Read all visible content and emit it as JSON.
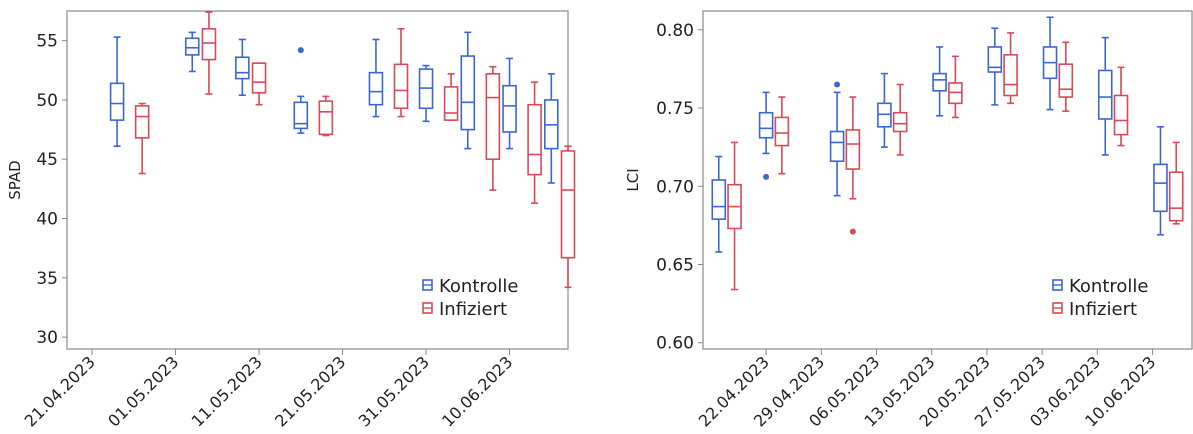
{
  "colors": {
    "kontrolle": "#3b66d6",
    "infiziert": "#d84a57",
    "axis": "#888888"
  },
  "chart_data": [
    {
      "type": "box",
      "ylabel": "SPAD",
      "ylim": [
        29,
        57.5
      ],
      "yticks": [
        30,
        35,
        40,
        45,
        50,
        55
      ],
      "xlim": [
        "2023-04-18",
        "2023-06-17"
      ],
      "xticks": [
        "21.04.2023",
        "01.05.2023",
        "11.05.2023",
        "21.05.2023",
        "31.05.2023",
        "10.06.2023"
      ],
      "legend": {
        "position": "bottom-right",
        "entries": [
          "Kontrolle",
          "Infiziert"
        ]
      },
      "series": [
        {
          "name": "Kontrolle",
          "boxes": [
            {
              "x": "2023-04-24",
              "min": 46.1,
              "q1": 48.3,
              "median": 49.7,
              "q3": 51.4,
              "max": 55.3,
              "outliers": []
            },
            {
              "x": "2023-05-03",
              "min": 52.4,
              "q1": 53.8,
              "median": 54.4,
              "q3": 55.2,
              "max": 55.7,
              "outliers": []
            },
            {
              "x": "2023-05-09",
              "min": 50.4,
              "q1": 51.8,
              "median": 52.3,
              "q3": 53.6,
              "max": 55.1,
              "outliers": []
            },
            {
              "x": "2023-05-16",
              "min": 47.2,
              "q1": 47.6,
              "median": 48.0,
              "q3": 49.8,
              "max": 50.3,
              "outliers": [
                54.2
              ]
            },
            {
              "x": "2023-05-25",
              "min": 48.6,
              "q1": 49.6,
              "median": 50.7,
              "q3": 52.3,
              "max": 55.1,
              "outliers": []
            },
            {
              "x": "2023-05-31",
              "min": 48.2,
              "q1": 49.3,
              "median": 51.0,
              "q3": 52.6,
              "max": 52.9,
              "outliers": []
            },
            {
              "x": "2023-06-05",
              "min": 45.9,
              "q1": 47.5,
              "median": 49.8,
              "q3": 53.7,
              "max": 55.7,
              "outliers": []
            },
            {
              "x": "2023-06-10",
              "min": 45.9,
              "q1": 47.3,
              "median": 49.5,
              "q3": 51.2,
              "max": 53.5,
              "outliers": []
            },
            {
              "x": "2023-06-15",
              "min": 43.0,
              "q1": 45.9,
              "median": 47.9,
              "q3": 50.0,
              "max": 52.2,
              "outliers": []
            }
          ]
        },
        {
          "name": "Infiziert",
          "boxes": [
            {
              "x": "2023-04-27",
              "min": 43.8,
              "q1": 46.8,
              "median": 48.6,
              "q3": 49.5,
              "max": 49.7,
              "outliers": []
            },
            {
              "x": "2023-05-05",
              "min": 50.5,
              "q1": 53.4,
              "median": 54.8,
              "q3": 56.0,
              "max": 57.4,
              "outliers": []
            },
            {
              "x": "2023-05-11",
              "min": 49.6,
              "q1": 50.6,
              "median": 51.5,
              "q3": 53.1,
              "max": 53.1,
              "outliers": []
            },
            {
              "x": "2023-05-19",
              "min": 47.0,
              "q1": 47.1,
              "median": 49.0,
              "q3": 49.9,
              "max": 50.3,
              "outliers": []
            },
            {
              "x": "2023-05-28",
              "min": 48.6,
              "q1": 49.3,
              "median": 50.8,
              "q3": 53.0,
              "max": 56.0,
              "outliers": []
            },
            {
              "x": "2023-06-03",
              "min": 48.3,
              "q1": 48.3,
              "median": 48.9,
              "q3": 51.1,
              "max": 52.2,
              "outliers": []
            },
            {
              "x": "2023-06-08",
              "min": 42.4,
              "q1": 45.0,
              "median": 50.2,
              "q3": 52.2,
              "max": 52.8,
              "outliers": []
            },
            {
              "x": "2023-06-13",
              "min": 41.3,
              "q1": 43.7,
              "median": 45.4,
              "q3": 49.6,
              "max": 51.5,
              "outliers": []
            },
            {
              "x": "2023-06-17",
              "min": 34.2,
              "q1": 36.7,
              "median": 42.4,
              "q3": 45.7,
              "max": 46.1,
              "outliers": []
            }
          ]
        }
      ]
    },
    {
      "type": "box",
      "ylabel": "LCI",
      "ylim": [
        0.596,
        0.812
      ],
      "yticks": [
        "0.60",
        "0.65",
        "0.70",
        "0.75",
        "0.80"
      ],
      "xlim": [
        "2023-04-14",
        "2023-06-15"
      ],
      "xticks": [
        "22.04.2023",
        "29.04.2023",
        "06.05.2023",
        "13.05.2023",
        "20.05.2023",
        "27.05.2023",
        "03.06.2023",
        "10.06.2023"
      ],
      "legend": {
        "position": "bottom-right",
        "entries": [
          "Kontrolle",
          "Infiziert"
        ]
      },
      "series": [
        {
          "name": "Kontrolle",
          "boxes": [
            {
              "x": "2023-04-16",
              "min": 0.658,
              "q1": 0.679,
              "median": 0.687,
              "q3": 0.704,
              "max": 0.719,
              "outliers": []
            },
            {
              "x": "2023-04-22",
              "min": 0.721,
              "q1": 0.731,
              "median": 0.737,
              "q3": 0.747,
              "max": 0.76,
              "outliers": [
                0.706
              ]
            },
            {
              "x": "2023-05-01",
              "min": 0.694,
              "q1": 0.716,
              "median": 0.728,
              "q3": 0.735,
              "max": 0.76,
              "outliers": [
                0.765
              ]
            },
            {
              "x": "2023-05-07",
              "min": 0.725,
              "q1": 0.738,
              "median": 0.746,
              "q3": 0.753,
              "max": 0.772,
              "outliers": []
            },
            {
              "x": "2023-05-14",
              "min": 0.745,
              "q1": 0.761,
              "median": 0.768,
              "q3": 0.772,
              "max": 0.789,
              "outliers": []
            },
            {
              "x": "2023-05-21",
              "min": 0.752,
              "q1": 0.773,
              "median": 0.776,
              "q3": 0.789,
              "max": 0.801,
              "outliers": []
            },
            {
              "x": "2023-05-28",
              "min": 0.749,
              "q1": 0.769,
              "median": 0.779,
              "q3": 0.789,
              "max": 0.808,
              "outliers": []
            },
            {
              "x": "2023-06-04",
              "min": 0.72,
              "q1": 0.743,
              "median": 0.757,
              "q3": 0.774,
              "max": 0.795,
              "outliers": []
            },
            {
              "x": "2023-06-11",
              "min": 0.669,
              "q1": 0.684,
              "median": 0.702,
              "q3": 0.714,
              "max": 0.738,
              "outliers": []
            }
          ]
        },
        {
          "name": "Infiziert",
          "boxes": [
            {
              "x": "2023-04-18",
              "min": 0.634,
              "q1": 0.673,
              "median": 0.687,
              "q3": 0.701,
              "max": 0.728,
              "outliers": []
            },
            {
              "x": "2023-04-24",
              "min": 0.708,
              "q1": 0.726,
              "median": 0.734,
              "q3": 0.744,
              "max": 0.757,
              "outliers": []
            },
            {
              "x": "2023-05-03",
              "min": 0.692,
              "q1": 0.711,
              "median": 0.727,
              "q3": 0.736,
              "max": 0.757,
              "outliers": [
                0.671
              ]
            },
            {
              "x": "2023-05-09",
              "min": 0.72,
              "q1": 0.735,
              "median": 0.74,
              "q3": 0.747,
              "max": 0.765,
              "outliers": []
            },
            {
              "x": "2023-05-16",
              "min": 0.744,
              "q1": 0.753,
              "median": 0.76,
              "q3": 0.766,
              "max": 0.783,
              "outliers": []
            },
            {
              "x": "2023-05-23",
              "min": 0.753,
              "q1": 0.758,
              "median": 0.765,
              "q3": 0.784,
              "max": 0.798,
              "outliers": []
            },
            {
              "x": "2023-05-30",
              "min": 0.748,
              "q1": 0.757,
              "median": 0.762,
              "q3": 0.778,
              "max": 0.792,
              "outliers": []
            },
            {
              "x": "2023-06-06",
              "min": 0.726,
              "q1": 0.733,
              "median": 0.742,
              "q3": 0.758,
              "max": 0.776,
              "outliers": []
            },
            {
              "x": "2023-06-13",
              "min": 0.676,
              "q1": 0.678,
              "median": 0.686,
              "q3": 0.709,
              "max": 0.728,
              "outliers": []
            }
          ]
        }
      ]
    }
  ]
}
